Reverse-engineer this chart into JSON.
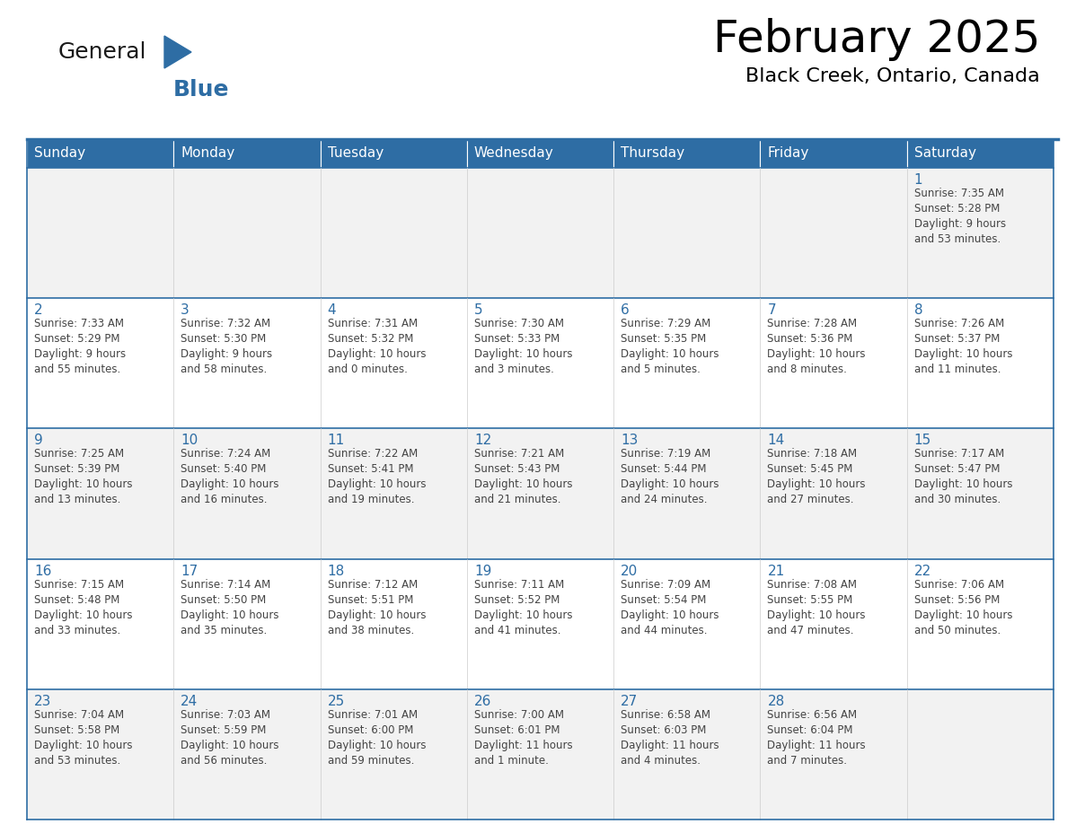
{
  "title": "February 2025",
  "subtitle": "Black Creek, Ontario, Canada",
  "header_bg": "#2E6DA4",
  "header_text": "#FFFFFF",
  "row_bg_odd": "#F2F2F2",
  "row_bg_even": "#FFFFFF",
  "day_number_color": "#2E6DA4",
  "text_color": "#444444",
  "border_color": "#2E6DA4",
  "cell_border_color": "#CCCCCC",
  "days_of_week": [
    "Sunday",
    "Monday",
    "Tuesday",
    "Wednesday",
    "Thursday",
    "Friday",
    "Saturday"
  ],
  "calendar_data": [
    [
      {
        "day": null,
        "info": null
      },
      {
        "day": null,
        "info": null
      },
      {
        "day": null,
        "info": null
      },
      {
        "day": null,
        "info": null
      },
      {
        "day": null,
        "info": null
      },
      {
        "day": null,
        "info": null
      },
      {
        "day": 1,
        "info": "Sunrise: 7:35 AM\nSunset: 5:28 PM\nDaylight: 9 hours\nand 53 minutes."
      }
    ],
    [
      {
        "day": 2,
        "info": "Sunrise: 7:33 AM\nSunset: 5:29 PM\nDaylight: 9 hours\nand 55 minutes."
      },
      {
        "day": 3,
        "info": "Sunrise: 7:32 AM\nSunset: 5:30 PM\nDaylight: 9 hours\nand 58 minutes."
      },
      {
        "day": 4,
        "info": "Sunrise: 7:31 AM\nSunset: 5:32 PM\nDaylight: 10 hours\nand 0 minutes."
      },
      {
        "day": 5,
        "info": "Sunrise: 7:30 AM\nSunset: 5:33 PM\nDaylight: 10 hours\nand 3 minutes."
      },
      {
        "day": 6,
        "info": "Sunrise: 7:29 AM\nSunset: 5:35 PM\nDaylight: 10 hours\nand 5 minutes."
      },
      {
        "day": 7,
        "info": "Sunrise: 7:28 AM\nSunset: 5:36 PM\nDaylight: 10 hours\nand 8 minutes."
      },
      {
        "day": 8,
        "info": "Sunrise: 7:26 AM\nSunset: 5:37 PM\nDaylight: 10 hours\nand 11 minutes."
      }
    ],
    [
      {
        "day": 9,
        "info": "Sunrise: 7:25 AM\nSunset: 5:39 PM\nDaylight: 10 hours\nand 13 minutes."
      },
      {
        "day": 10,
        "info": "Sunrise: 7:24 AM\nSunset: 5:40 PM\nDaylight: 10 hours\nand 16 minutes."
      },
      {
        "day": 11,
        "info": "Sunrise: 7:22 AM\nSunset: 5:41 PM\nDaylight: 10 hours\nand 19 minutes."
      },
      {
        "day": 12,
        "info": "Sunrise: 7:21 AM\nSunset: 5:43 PM\nDaylight: 10 hours\nand 21 minutes."
      },
      {
        "day": 13,
        "info": "Sunrise: 7:19 AM\nSunset: 5:44 PM\nDaylight: 10 hours\nand 24 minutes."
      },
      {
        "day": 14,
        "info": "Sunrise: 7:18 AM\nSunset: 5:45 PM\nDaylight: 10 hours\nand 27 minutes."
      },
      {
        "day": 15,
        "info": "Sunrise: 7:17 AM\nSunset: 5:47 PM\nDaylight: 10 hours\nand 30 minutes."
      }
    ],
    [
      {
        "day": 16,
        "info": "Sunrise: 7:15 AM\nSunset: 5:48 PM\nDaylight: 10 hours\nand 33 minutes."
      },
      {
        "day": 17,
        "info": "Sunrise: 7:14 AM\nSunset: 5:50 PM\nDaylight: 10 hours\nand 35 minutes."
      },
      {
        "day": 18,
        "info": "Sunrise: 7:12 AM\nSunset: 5:51 PM\nDaylight: 10 hours\nand 38 minutes."
      },
      {
        "day": 19,
        "info": "Sunrise: 7:11 AM\nSunset: 5:52 PM\nDaylight: 10 hours\nand 41 minutes."
      },
      {
        "day": 20,
        "info": "Sunrise: 7:09 AM\nSunset: 5:54 PM\nDaylight: 10 hours\nand 44 minutes."
      },
      {
        "day": 21,
        "info": "Sunrise: 7:08 AM\nSunset: 5:55 PM\nDaylight: 10 hours\nand 47 minutes."
      },
      {
        "day": 22,
        "info": "Sunrise: 7:06 AM\nSunset: 5:56 PM\nDaylight: 10 hours\nand 50 minutes."
      }
    ],
    [
      {
        "day": 23,
        "info": "Sunrise: 7:04 AM\nSunset: 5:58 PM\nDaylight: 10 hours\nand 53 minutes."
      },
      {
        "day": 24,
        "info": "Sunrise: 7:03 AM\nSunset: 5:59 PM\nDaylight: 10 hours\nand 56 minutes."
      },
      {
        "day": 25,
        "info": "Sunrise: 7:01 AM\nSunset: 6:00 PM\nDaylight: 10 hours\nand 59 minutes."
      },
      {
        "day": 26,
        "info": "Sunrise: 7:00 AM\nSunset: 6:01 PM\nDaylight: 11 hours\nand 1 minute."
      },
      {
        "day": 27,
        "info": "Sunrise: 6:58 AM\nSunset: 6:03 PM\nDaylight: 11 hours\nand 4 minutes."
      },
      {
        "day": 28,
        "info": "Sunrise: 6:56 AM\nSunset: 6:04 PM\nDaylight: 11 hours\nand 7 minutes."
      },
      {
        "day": null,
        "info": null
      }
    ]
  ]
}
